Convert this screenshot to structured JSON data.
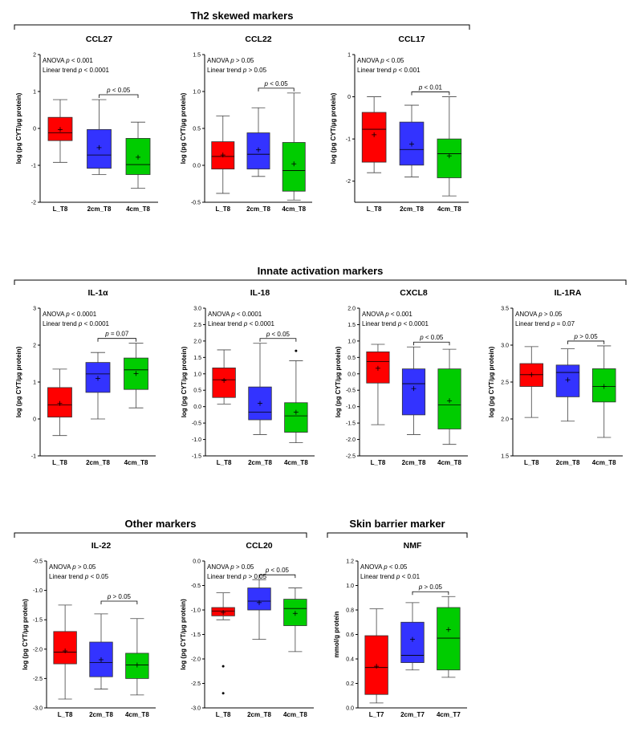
{
  "colors": {
    "L": "#ff0000",
    "2cm": "#3333ff",
    "4cm": "#00cc00"
  },
  "groups": [
    {
      "title": "Th2 skewed markers"
    },
    {
      "title": "Innate activation markers"
    },
    {
      "title": "Other markers"
    },
    {
      "title": "Skin barrier marker"
    }
  ],
  "chart_data": [
    {
      "type": "box",
      "title": "CCL27",
      "ylabel": "log (pg CYT/µg protein)",
      "ylim": [
        -2,
        2
      ],
      "yticks": [
        "-2",
        "-1",
        "0",
        "1",
        "2"
      ],
      "stats": [
        "ANOVA p < 0.001",
        "Linear trend p < 0.0001"
      ],
      "comparison": "p < 0.05",
      "categories": [
        "L_T8",
        "2cm_T8",
        "4cm_T8"
      ],
      "boxes": [
        {
          "whisker_low": -0.92,
          "q1": -0.33,
          "median": -0.12,
          "q3": 0.3,
          "whisker_high": 0.78,
          "mean": -0.03,
          "outliers": []
        },
        {
          "whisker_low": -1.25,
          "q1": -1.08,
          "median": -0.72,
          "q3": -0.03,
          "whisker_high": 0.78,
          "mean": -0.52,
          "outliers": []
        },
        {
          "whisker_low": -1.62,
          "q1": -1.25,
          "median": -0.98,
          "q3": -0.27,
          "whisker_high": 0.17,
          "mean": -0.78,
          "outliers": []
        }
      ]
    },
    {
      "type": "box",
      "title": "CCL22",
      "ylabel": "log (pg CYT/µg protein)",
      "ylim": [
        -0.5,
        1.5
      ],
      "yticks": [
        "-0.5",
        "0.0",
        "0.5",
        "1.0",
        "1.5"
      ],
      "stats": [
        "ANOVA p > 0.05",
        "Linear trend p > 0.05"
      ],
      "comparison": "p < 0.05",
      "categories": [
        "L_T8",
        "2cm_T8",
        "4cm_T8"
      ],
      "boxes": [
        {
          "whisker_low": -0.38,
          "q1": -0.05,
          "median": 0.12,
          "q3": 0.32,
          "whisker_high": 0.67,
          "mean": 0.14,
          "outliers": []
        },
        {
          "whisker_low": -0.15,
          "q1": -0.05,
          "median": 0.15,
          "q3": 0.44,
          "whisker_high": 0.78,
          "mean": 0.21,
          "outliers": []
        },
        {
          "whisker_low": -0.47,
          "q1": -0.35,
          "median": -0.07,
          "q3": 0.31,
          "whisker_high": 0.98,
          "mean": 0.02,
          "outliers": []
        }
      ]
    },
    {
      "type": "box",
      "title": "CCL17",
      "ylabel": "log (pg CYT/µg protein)",
      "ylim": [
        -2.5,
        1
      ],
      "yticks": [
        "-2",
        "-1",
        "0",
        "1"
      ],
      "stats": [
        "ANOVA p < 0.05",
        "Linear trend p < 0.001"
      ],
      "comparison": "p < 0.01",
      "categories": [
        "L_T8",
        "2cm_T8",
        "4cm_T8"
      ],
      "boxes": [
        {
          "whisker_low": -1.8,
          "q1": -1.55,
          "median": -0.77,
          "q3": -0.37,
          "whisker_high": 0.0,
          "mean": -0.9,
          "outliers": []
        },
        {
          "whisker_low": -1.9,
          "q1": -1.62,
          "median": -1.25,
          "q3": -0.6,
          "whisker_high": -0.2,
          "mean": -1.12,
          "outliers": []
        },
        {
          "whisker_low": -2.35,
          "q1": -1.92,
          "median": -1.35,
          "q3": -1.0,
          "whisker_high": 0.0,
          "mean": -1.4,
          "outliers": []
        }
      ]
    },
    {
      "type": "box",
      "title": "IL-1α",
      "ylabel": "log (pg CYT/µg protein)",
      "ylim": [
        -1,
        3
      ],
      "yticks": [
        "-1",
        "0",
        "1",
        "2",
        "3"
      ],
      "stats": [
        "ANOVA p < 0.0001",
        "Linear trend p < 0.0001"
      ],
      "comparison": "p = 0.07",
      "categories": [
        "L_T8",
        "2cm_T8",
        "4cm_T8"
      ],
      "boxes": [
        {
          "whisker_low": -0.45,
          "q1": 0.05,
          "median": 0.38,
          "q3": 0.85,
          "whisker_high": 1.35,
          "mean": 0.42,
          "outliers": []
        },
        {
          "whisker_low": 0.0,
          "q1": 0.72,
          "median": 1.22,
          "q3": 1.53,
          "whisker_high": 1.8,
          "mean": 1.1,
          "outliers": []
        },
        {
          "whisker_low": 0.3,
          "q1": 0.8,
          "median": 1.33,
          "q3": 1.65,
          "whisker_high": 2.05,
          "mean": 1.23,
          "outliers": []
        }
      ]
    },
    {
      "type": "box",
      "title": "IL-18",
      "ylabel": "log (pg CYT/µg protein)",
      "ylim": [
        -1.5,
        3
      ],
      "yticks": [
        "-1.5",
        "-1.0",
        "-0.5",
        "0.0",
        "0.5",
        "1.0",
        "1.5",
        "2.0",
        "2.5",
        "3.0"
      ],
      "stats": [
        "ANOVA p < 0.0001",
        "Linear trend p < 0.0001"
      ],
      "comparison": "p < 0.05",
      "categories": [
        "L_T8",
        "2cm_T8",
        "4cm_T8"
      ],
      "boxes": [
        {
          "whisker_low": 0.08,
          "q1": 0.28,
          "median": 0.82,
          "q3": 1.18,
          "whisker_high": 1.73,
          "mean": 0.8,
          "outliers": []
        },
        {
          "whisker_low": -0.85,
          "q1": -0.4,
          "median": -0.17,
          "q3": 0.6,
          "whisker_high": 1.93,
          "mean": 0.1,
          "outliers": []
        },
        {
          "whisker_low": -1.1,
          "q1": -0.78,
          "median": -0.28,
          "q3": 0.12,
          "whisker_high": 1.4,
          "mean": -0.17,
          "outliers": [
            1.7
          ]
        }
      ]
    },
    {
      "type": "box",
      "title": "CXCL8",
      "ylabel": "log (pg CYT/µg protein)",
      "ylim": [
        -2.5,
        2
      ],
      "yticks": [
        "-2.5",
        "-2.0",
        "-1.5",
        "-1.0",
        "-0.5",
        "0.0",
        "0.5",
        "1.0",
        "1.5",
        "2.0"
      ],
      "stats": [
        "ANOVA p < 0.001",
        "Linear trend p < 0.0001"
      ],
      "comparison": "p < 0.05",
      "categories": [
        "L_T8",
        "2cm_T8",
        "4cm_T8"
      ],
      "boxes": [
        {
          "whisker_low": -1.55,
          "q1": -0.28,
          "median": 0.37,
          "q3": 0.67,
          "whisker_high": 0.9,
          "mean": 0.17,
          "outliers": []
        },
        {
          "whisker_low": -1.85,
          "q1": -1.25,
          "median": -0.3,
          "q3": 0.15,
          "whisker_high": 0.82,
          "mean": -0.45,
          "outliers": []
        },
        {
          "whisker_low": -2.15,
          "q1": -1.68,
          "median": -0.95,
          "q3": 0.15,
          "whisker_high": 0.75,
          "mean": -0.82,
          "outliers": []
        }
      ]
    },
    {
      "type": "box",
      "title": "IL-1RA",
      "ylabel": "log (pg CYT/µg protein)",
      "ylim": [
        1.5,
        3.5
      ],
      "yticks": [
        "1.5",
        "2.0",
        "2.5",
        "3.0",
        "3.5"
      ],
      "stats": [
        "ANOVA p > 0.05",
        "Linear trend p = 0.07"
      ],
      "comparison": "p > 0.05",
      "categories": [
        "L_T8",
        "2cm_T8",
        "4cm_T8"
      ],
      "boxes": [
        {
          "whisker_low": 2.02,
          "q1": 2.44,
          "median": 2.6,
          "q3": 2.75,
          "whisker_high": 2.98,
          "mean": 2.6,
          "outliers": []
        },
        {
          "whisker_low": 1.97,
          "q1": 2.3,
          "median": 2.63,
          "q3": 2.73,
          "whisker_high": 2.95,
          "mean": 2.53,
          "outliers": []
        },
        {
          "whisker_low": 1.75,
          "q1": 2.23,
          "median": 2.44,
          "q3": 2.68,
          "whisker_high": 2.99,
          "mean": 2.44,
          "outliers": []
        }
      ]
    },
    {
      "type": "box",
      "title": "IL-22",
      "ylabel": "log (pg CYT/µg protein)",
      "ylim": [
        -3,
        -0.5
      ],
      "yticks": [
        "-3.0",
        "-2.5",
        "-2.0",
        "-1.5",
        "-1.0",
        "-0.5"
      ],
      "stats": [
        "ANOVA p > 0.05",
        "Linear trend p < 0.05"
      ],
      "comparison": "p > 0.05",
      "categories": [
        "L_T8",
        "2cm_T8",
        "4cm_T8"
      ],
      "boxes": [
        {
          "whisker_low": -2.85,
          "q1": -2.25,
          "median": -2.05,
          "q3": -1.7,
          "whisker_high": -1.25,
          "mean": -2.03,
          "outliers": []
        },
        {
          "whisker_low": -2.68,
          "q1": -2.47,
          "median": -2.23,
          "q3": -1.88,
          "whisker_high": -1.4,
          "mean": -2.18,
          "outliers": []
        },
        {
          "whisker_low": -2.78,
          "q1": -2.5,
          "median": -2.27,
          "q3": -2.07,
          "whisker_high": -1.48,
          "mean": -2.27,
          "outliers": []
        }
      ]
    },
    {
      "type": "box",
      "title": "CCL20",
      "ylabel": "log (pg CYT/µg protein)",
      "ylim": [
        -3,
        0
      ],
      "yticks": [
        "-3.0",
        "-2.5",
        "-2.0",
        "-1.5",
        "-1.0",
        "-0.5",
        "0.0"
      ],
      "stats": [
        "ANOVA p > 0.05",
        "Linear trend p > 0.05"
      ],
      "comparison": "p < 0.05",
      "categories": [
        "L_T8",
        "2cm_T8",
        "4cm_T8"
      ],
      "boxes": [
        {
          "whisker_low": -1.2,
          "q1": -1.12,
          "median": -1.02,
          "q3": -0.95,
          "whisker_high": -0.65,
          "mean": -1.05,
          "outliers": [
            -2.15,
            -2.7
          ]
        },
        {
          "whisker_low": -1.6,
          "q1": -1.0,
          "median": -0.82,
          "q3": -0.55,
          "whisker_high": -0.38,
          "mean": -0.85,
          "outliers": []
        },
        {
          "whisker_low": -1.85,
          "q1": -1.32,
          "median": -0.97,
          "q3": -0.78,
          "whisker_high": -0.55,
          "mean": -1.07,
          "outliers": []
        }
      ]
    },
    {
      "type": "box",
      "title": "NMF",
      "ylabel": "mmol/g protein",
      "ylim": [
        0,
        1.2
      ],
      "yticks": [
        "0.0",
        "0.2",
        "0.4",
        "0.6",
        "0.8",
        "1.0",
        "1.2"
      ],
      "stats": [
        "ANOVA p < 0.05",
        "Linear trend p < 0.01"
      ],
      "comparison": "p > 0.05",
      "categories": [
        "L_T7",
        "2cm_T7",
        "4cm_T7"
      ],
      "boxes": [
        {
          "whisker_low": 0.04,
          "q1": 0.11,
          "median": 0.33,
          "q3": 0.59,
          "whisker_high": 0.81,
          "mean": 0.34,
          "outliers": []
        },
        {
          "whisker_low": 0.31,
          "q1": 0.37,
          "median": 0.43,
          "q3": 0.7,
          "whisker_high": 0.86,
          "mean": 0.56,
          "outliers": []
        },
        {
          "whisker_low": 0.25,
          "q1": 0.31,
          "median": 0.57,
          "q3": 0.82,
          "whisker_high": 0.91,
          "mean": 0.64,
          "outliers": []
        }
      ]
    }
  ]
}
